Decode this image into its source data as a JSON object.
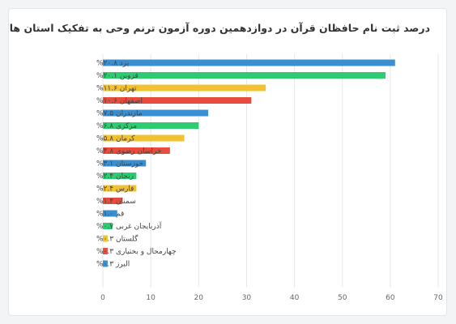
{
  "chart_data": {
    "type": "bar",
    "orientation": "horizontal",
    "title": "درصد ثبت نام حافظان قرآن در دوازدهمین دوره آزمون ترنم وحی به تفکیک استان ها",
    "categories": [
      "یزد ۲۰.۸%",
      "قزوین ۲۰.۱%",
      "تهران ۱۱.۶%",
      "اصفهان ۱۰.۶%",
      "مازندران ۷.۵%",
      "مرکزی ۶.۸%",
      "کرمان ۵.۸%",
      "خراسان رضوی ۴.۸%",
      "خوزستان ۳.۱%",
      "زنجان ۲.۴%",
      "فارس ۲.۴%",
      "سمنان ۱.۴%",
      "قم ۱.۰%",
      "آذربایجان غربی ۰.۷%",
      "گلستان ۰.۳%",
      "چهارمحال و بختیاری ۰.۳%",
      "البرز ۰.۳%"
    ],
    "values": [
      61,
      59,
      34,
      31,
      22,
      20,
      17,
      14,
      9,
      7,
      7,
      4,
      3,
      2,
      1,
      1,
      1
    ],
    "colors": [
      "#3a8fd1",
      "#2ecc71",
      "#f2c12e",
      "#e74c3c"
    ],
    "xlim": [
      0,
      70
    ],
    "xticks": [
      0,
      10,
      20,
      30,
      40,
      50,
      60,
      70
    ],
    "grid": true,
    "legend": "none"
  }
}
